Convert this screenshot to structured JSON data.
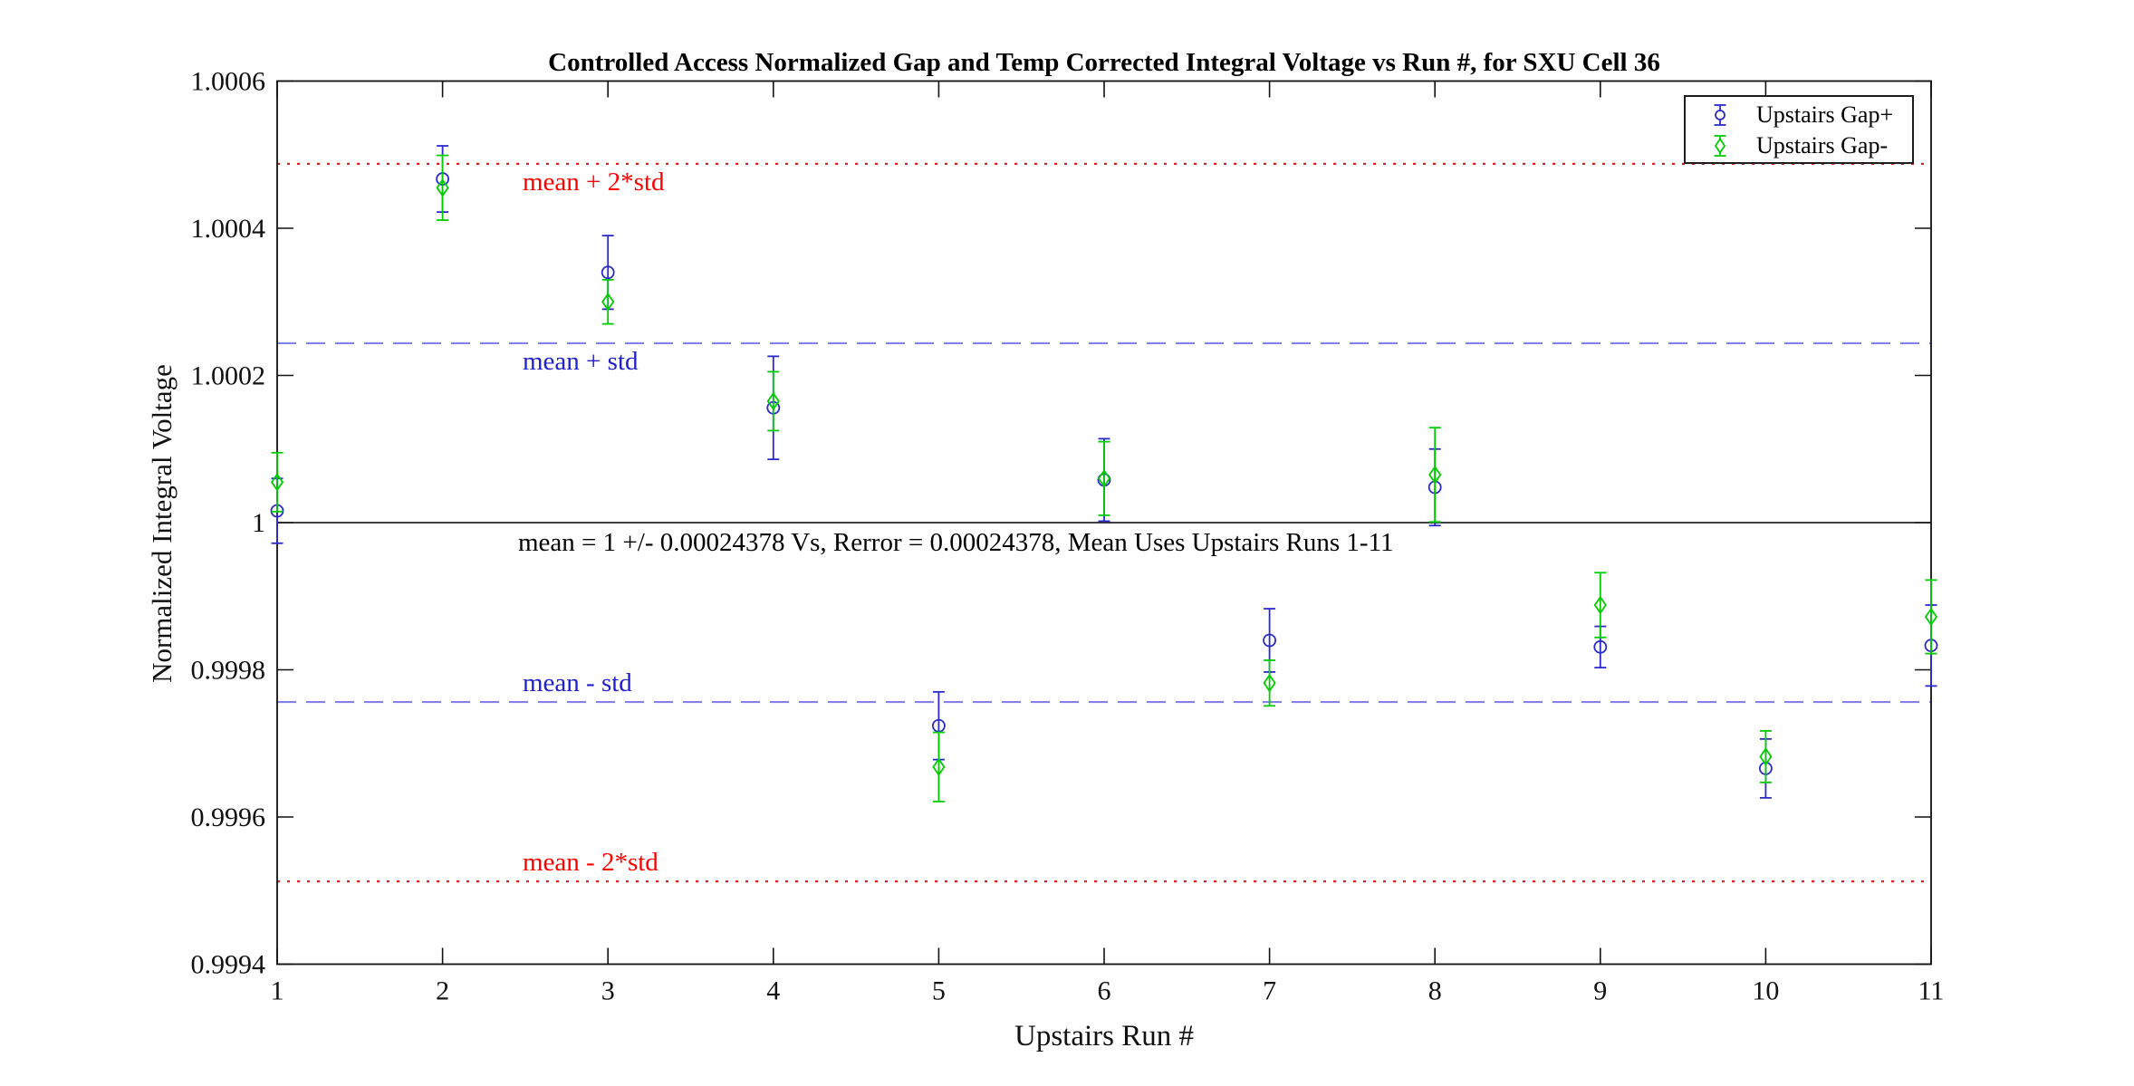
{
  "figure": {
    "title": "Controlled Access Normalized Gap and Temp Corrected Integral Voltage vs Run #, for SXU Cell 36",
    "xlabel": "Upstairs Run #",
    "ylabel": "Normalized Integral Voltage"
  },
  "legend": {
    "entries": [
      {
        "label": "Upstairs Gap+",
        "marker": "circle",
        "color": "#2A2ACC"
      },
      {
        "label": "Upstairs Gap-",
        "marker": "diamond",
        "color": "#00CC00"
      }
    ]
  },
  "chart_data": {
    "type": "scatter",
    "title": "Controlled Access Normalized Gap and Temp Corrected Integral Voltage vs Run #, for SXU Cell 36",
    "xlabel": "Upstairs Run #",
    "ylabel": "Normalized Integral Voltage",
    "xlim": [
      1,
      11
    ],
    "ylim": [
      0.9994,
      1.0006
    ],
    "grid": false,
    "legend_position": "top-right",
    "x": [
      1,
      2,
      3,
      4,
      5,
      6,
      7,
      8,
      9,
      10,
      11
    ],
    "xticks": [
      {
        "v": 1,
        "label": "1"
      },
      {
        "v": 2,
        "label": "2"
      },
      {
        "v": 3,
        "label": "3"
      },
      {
        "v": 4,
        "label": "4"
      },
      {
        "v": 5,
        "label": "5"
      },
      {
        "v": 6,
        "label": "6"
      },
      {
        "v": 7,
        "label": "7"
      },
      {
        "v": 8,
        "label": "8"
      },
      {
        "v": 9,
        "label": "9"
      },
      {
        "v": 10,
        "label": "10"
      },
      {
        "v": 11,
        "label": "11"
      }
    ],
    "yticks": [
      {
        "v": 1.0006,
        "label": "1.0006"
      },
      {
        "v": 1.0004,
        "label": "1.0004"
      },
      {
        "v": 1.0002,
        "label": "1.0002"
      },
      {
        "v": 1,
        "label": "1"
      },
      {
        "v": 0.9998,
        "label": "0.9998"
      },
      {
        "v": 0.9996,
        "label": "0.9996"
      },
      {
        "v": 0.9994,
        "label": "0.9994"
      }
    ],
    "series": [
      {
        "name": "Upstairs Gap+",
        "marker": "circle",
        "color": "#2A2ACC",
        "values": [
          1.000016,
          1.000467,
          1.00034,
          1.000156,
          0.999724,
          1.000058,
          0.99984,
          1.000048,
          0.999831,
          0.999666,
          0.999833
        ],
        "errors": [
          4.4e-05,
          4.5e-05,
          5e-05,
          7e-05,
          4.6e-05,
          5.6e-05,
          4.3e-05,
          5.2e-05,
          2.8e-05,
          4e-05,
          5.5e-05
        ]
      },
      {
        "name": "Upstairs Gap-",
        "marker": "diamond",
        "color": "#00CC00",
        "values": [
          1.000055,
          1.000455,
          1.0003,
          1.000165,
          0.999668,
          1.00006,
          0.999782,
          1.000065,
          0.999888,
          0.999682,
          0.999872
        ],
        "errors": [
          4e-05,
          4.4e-05,
          3e-05,
          4e-05,
          4.7e-05,
          5e-05,
          3.1e-05,
          6.4e-05,
          4.4e-05,
          3.5e-05,
          5e-05
        ]
      }
    ],
    "reference_lines": [
      {
        "label": "mean + 2*std",
        "value": 1.00048756,
        "style": "dotted",
        "line_color": "#E02020",
        "label_color": "#FF0000",
        "label_side": "below"
      },
      {
        "label": "mean + std",
        "value": 1.00024378,
        "style": "dashed",
        "line_color": "#8282E8",
        "label_color": "#2020CC",
        "label_side": "below"
      },
      {
        "label": "",
        "value": 1.0,
        "style": "solid",
        "line_color": "#000000",
        "label_color": "#000000",
        "label_side": "below"
      },
      {
        "label": "mean - std",
        "value": 0.99975622,
        "style": "dashed",
        "line_color": "#8282E8",
        "label_color": "#2020CC",
        "label_side": "above"
      },
      {
        "label": "mean - 2*std",
        "value": 0.99951244,
        "style": "dotted",
        "line_color": "#E02020",
        "label_color": "#FF0000",
        "label_side": "above"
      }
    ],
    "annotation": {
      "text": "mean = 1 +/- 0.00024378 Vs, Rerror = 0.00024378, Mean Uses Upstairs Runs 1-11",
      "at_value": 1.0,
      "color": "#000000"
    }
  }
}
